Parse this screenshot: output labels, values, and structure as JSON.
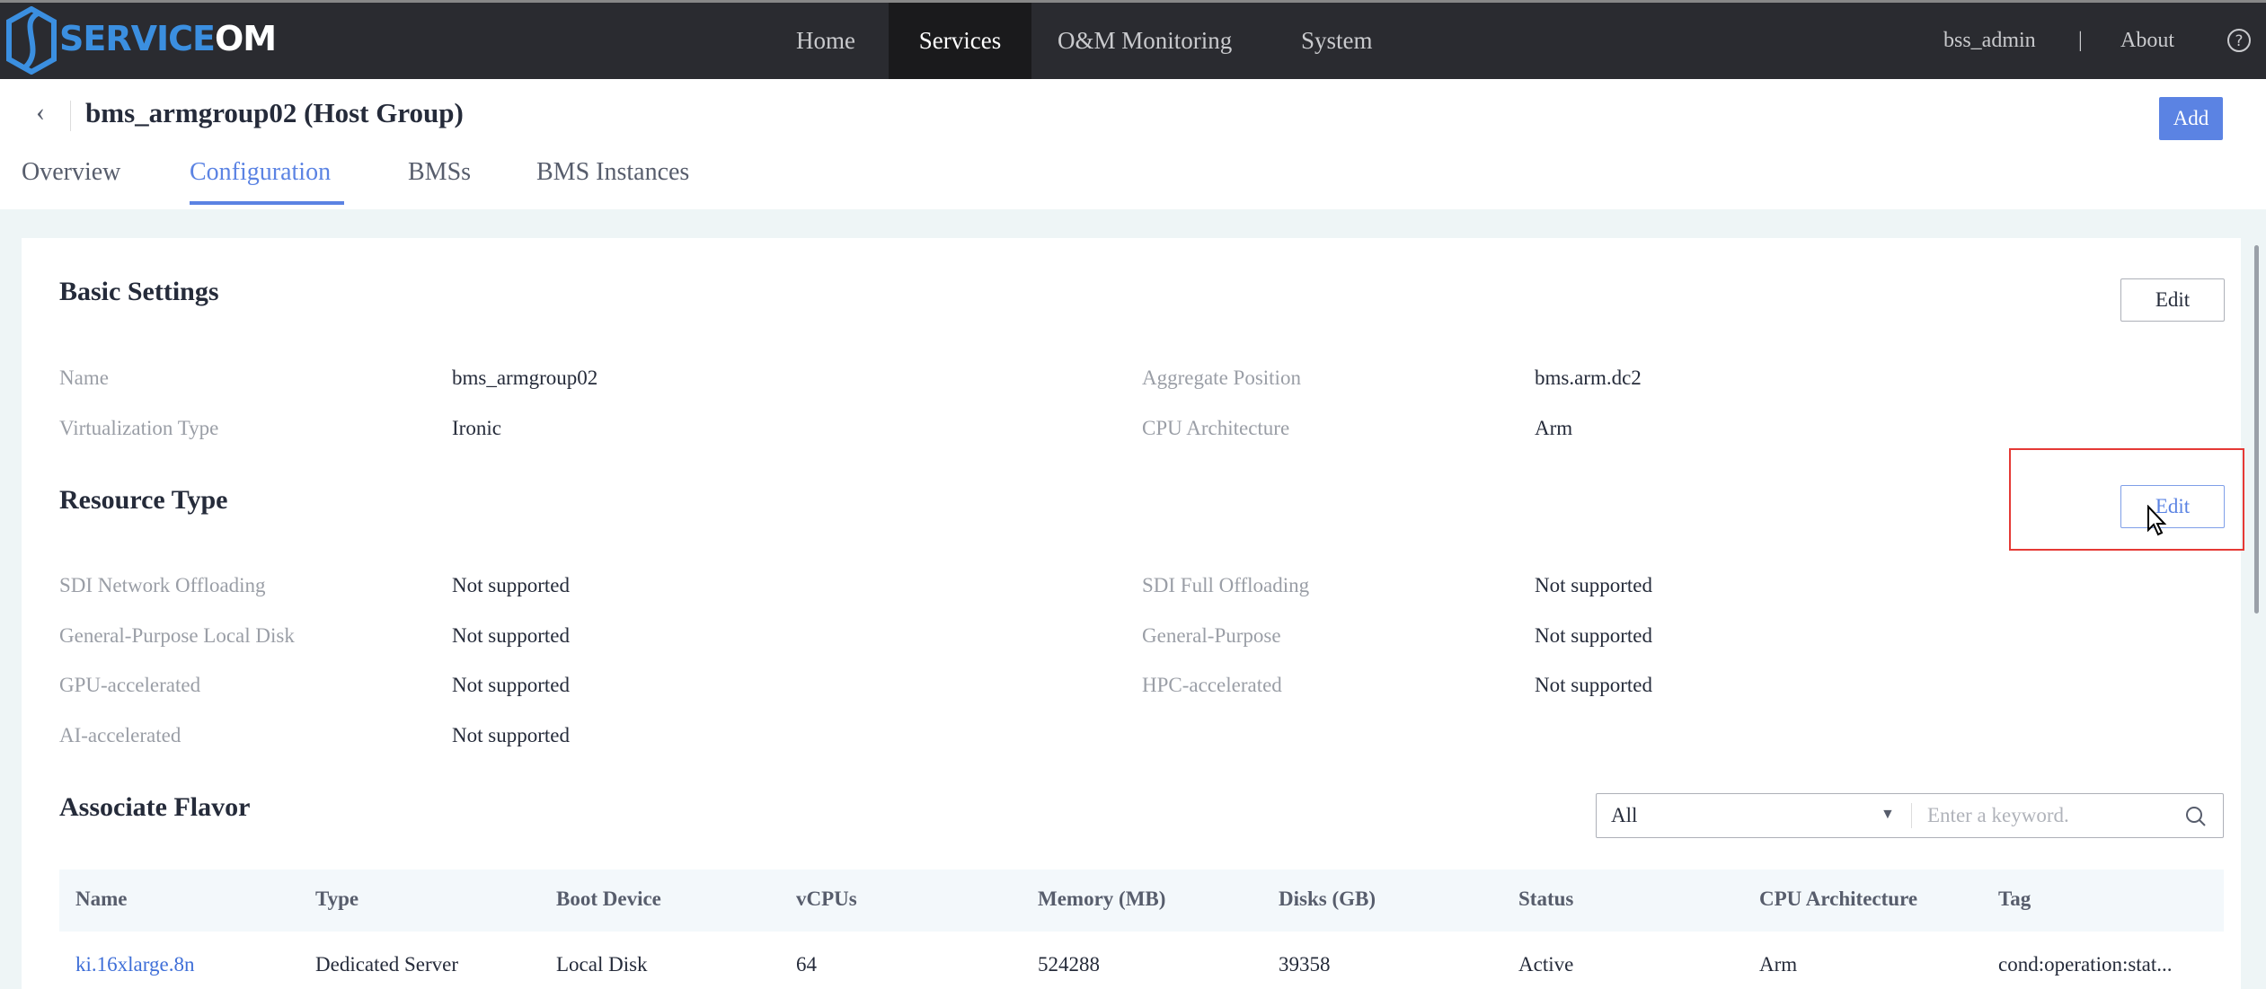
{
  "app": {
    "logo_text_a": "SERVICE",
    "logo_text_b": "OM",
    "brand_color": "#3b8fe0"
  },
  "nav": {
    "items": [
      {
        "label": "Home"
      },
      {
        "label": "Services",
        "active": true
      },
      {
        "label": "O&M Monitoring"
      },
      {
        "label": "System"
      }
    ],
    "user": "bss_admin",
    "separator": "|",
    "about": "About",
    "help_icon": "question-circle-icon"
  },
  "header": {
    "title": "bms_armgroup02 (Host Group)",
    "back_icon": "chevron-left-icon",
    "add_label": "Add",
    "accent": "#5b83e3"
  },
  "tabs": [
    {
      "label": "Overview"
    },
    {
      "label": "Configuration",
      "active": true
    },
    {
      "label": "BMSs"
    },
    {
      "label": "BMS Instances"
    }
  ],
  "basic": {
    "title": "Basic Settings",
    "edit_label": "Edit",
    "rows": [
      {
        "label": "Name",
        "value": "bms_armgroup02",
        "label2": "Aggregate Position",
        "value2": "bms.arm.dc2"
      },
      {
        "label": "Virtualization Type",
        "value": "Ironic",
        "label2": "CPU Architecture",
        "value2": "Arm"
      }
    ]
  },
  "resource": {
    "title": "Resource Type",
    "edit_label": "Edit",
    "rows": [
      {
        "label": "SDI Network Offloading",
        "value": "Not supported",
        "label2": "SDI Full Offloading",
        "value2": "Not supported"
      },
      {
        "label": "General-Purpose Local Disk",
        "value": "Not supported",
        "label2": "General-Purpose",
        "value2": "Not supported"
      },
      {
        "label": "GPU-accelerated",
        "value": "Not supported",
        "label2": "HPC-accelerated",
        "value2": "Not supported"
      },
      {
        "label": "AI-accelerated",
        "value": "Not supported"
      }
    ]
  },
  "flavor": {
    "title": "Associate Flavor",
    "filter_value": "All",
    "search_placeholder": "Enter a keyword.",
    "columns": [
      "Name",
      "Type",
      "Boot Device",
      "vCPUs",
      "Memory (MB)",
      "Disks (GB)",
      "Status",
      "CPU Architecture",
      "Tag"
    ],
    "rows": [
      [
        "ki.16xlarge.8n",
        "Dedicated Server",
        "Local Disk",
        "64",
        "524288",
        "39358",
        "Active",
        "Arm",
        "cond:operation:stat..."
      ]
    ]
  }
}
